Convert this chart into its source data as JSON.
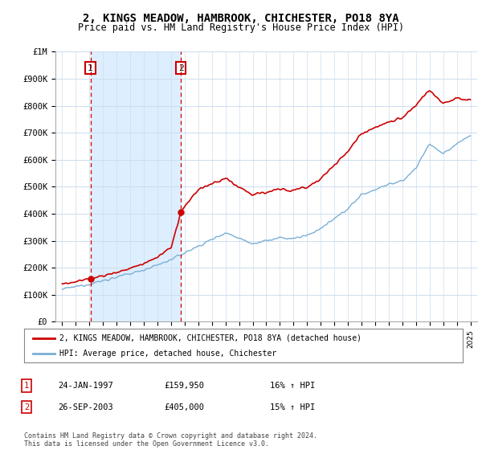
{
  "title": "2, KINGS MEADOW, HAMBROOK, CHICHESTER, PO18 8YA",
  "subtitle": "Price paid vs. HM Land Registry's House Price Index (HPI)",
  "title_fontsize": 10,
  "subtitle_fontsize": 8.5,
  "ylabel_ticks": [
    "£0",
    "£100K",
    "£200K",
    "£300K",
    "£400K",
    "£500K",
    "£600K",
    "£700K",
    "£800K",
    "£900K",
    "£1M"
  ],
  "ytick_values": [
    0,
    100000,
    200000,
    300000,
    400000,
    500000,
    600000,
    700000,
    800000,
    900000,
    1000000
  ],
  "ylim": [
    0,
    1000000
  ],
  "xlim_start": 1994.5,
  "xlim_end": 2025.5,
  "xtick_years": [
    1995,
    1996,
    1997,
    1998,
    1999,
    2000,
    2001,
    2002,
    2003,
    2004,
    2005,
    2006,
    2007,
    2008,
    2009,
    2010,
    2011,
    2012,
    2013,
    2014,
    2015,
    2016,
    2017,
    2018,
    2019,
    2020,
    2021,
    2022,
    2023,
    2024,
    2025
  ],
  "sale1_x": 1997.07,
  "sale1_y": 159950,
  "sale1_label": "1",
  "sale1_date": "24-JAN-1997",
  "sale1_price": "£159,950",
  "sale1_hpi": "16% ↑ HPI",
  "sale2_x": 2003.73,
  "sale2_y": 405000,
  "sale2_label": "2",
  "sale2_date": "26-SEP-2003",
  "sale2_price": "£405,000",
  "sale2_hpi": "15% ↑ HPI",
  "red_line_color": "#cc0000",
  "blue_line_color": "#7bafd4",
  "shade_color": "#ddeeff",
  "background_color": "#ffffff",
  "plot_bg_color": "#ffffff",
  "grid_color": "#ccddee",
  "legend_label_red": "2, KINGS MEADOW, HAMBROOK, CHICHESTER, PO18 8YA (detached house)",
  "legend_label_blue": "HPI: Average price, detached house, Chichester",
  "footer_text": "Contains HM Land Registry data © Crown copyright and database right 2024.\nThis data is licensed under the Open Government Licence v3.0.",
  "sale_marker_color": "#cc0000",
  "vline_color": "#cc0000",
  "table_label_color": "#cc0000",
  "hpi_anchors_x": [
    1995.0,
    1996.0,
    1997.0,
    1998.0,
    1999.0,
    2000.0,
    2001.0,
    2002.0,
    2003.0,
    2004.0,
    2005.0,
    2006.0,
    2007.0,
    2008.0,
    2009.0,
    2010.0,
    2011.0,
    2012.0,
    2013.0,
    2014.0,
    2015.0,
    2016.0,
    2017.0,
    2018.0,
    2019.0,
    2020.0,
    2021.0,
    2022.0,
    2023.0,
    2024.0,
    2025.0
  ],
  "hpi_anchors_y": [
    120000,
    130000,
    140000,
    152000,
    165000,
    178000,
    193000,
    210000,
    230000,
    255000,
    280000,
    305000,
    330000,
    310000,
    290000,
    300000,
    310000,
    308000,
    320000,
    345000,
    380000,
    420000,
    470000,
    490000,
    510000,
    520000,
    570000,
    660000,
    620000,
    660000,
    690000
  ],
  "red_anchors_x": [
    1995.0,
    1996.5,
    1997.07,
    1998.0,
    1999.0,
    2000.0,
    2001.0,
    2002.0,
    2003.0,
    2003.73,
    2004.5,
    2005.0,
    2006.0,
    2007.0,
    2008.0,
    2009.0,
    2010.0,
    2011.0,
    2012.0,
    2013.0,
    2014.0,
    2015.0,
    2016.0,
    2017.0,
    2018.0,
    2019.0,
    2020.0,
    2021.0,
    2022.0,
    2023.0,
    2024.0,
    2025.0
  ],
  "red_anchors_y": [
    140000,
    153000,
    159950,
    170000,
    183000,
    198000,
    215000,
    240000,
    275000,
    405000,
    460000,
    490000,
    510000,
    530000,
    500000,
    470000,
    480000,
    490000,
    487000,
    500000,
    530000,
    580000,
    630000,
    700000,
    720000,
    740000,
    755000,
    800000,
    860000,
    810000,
    830000,
    820000
  ]
}
